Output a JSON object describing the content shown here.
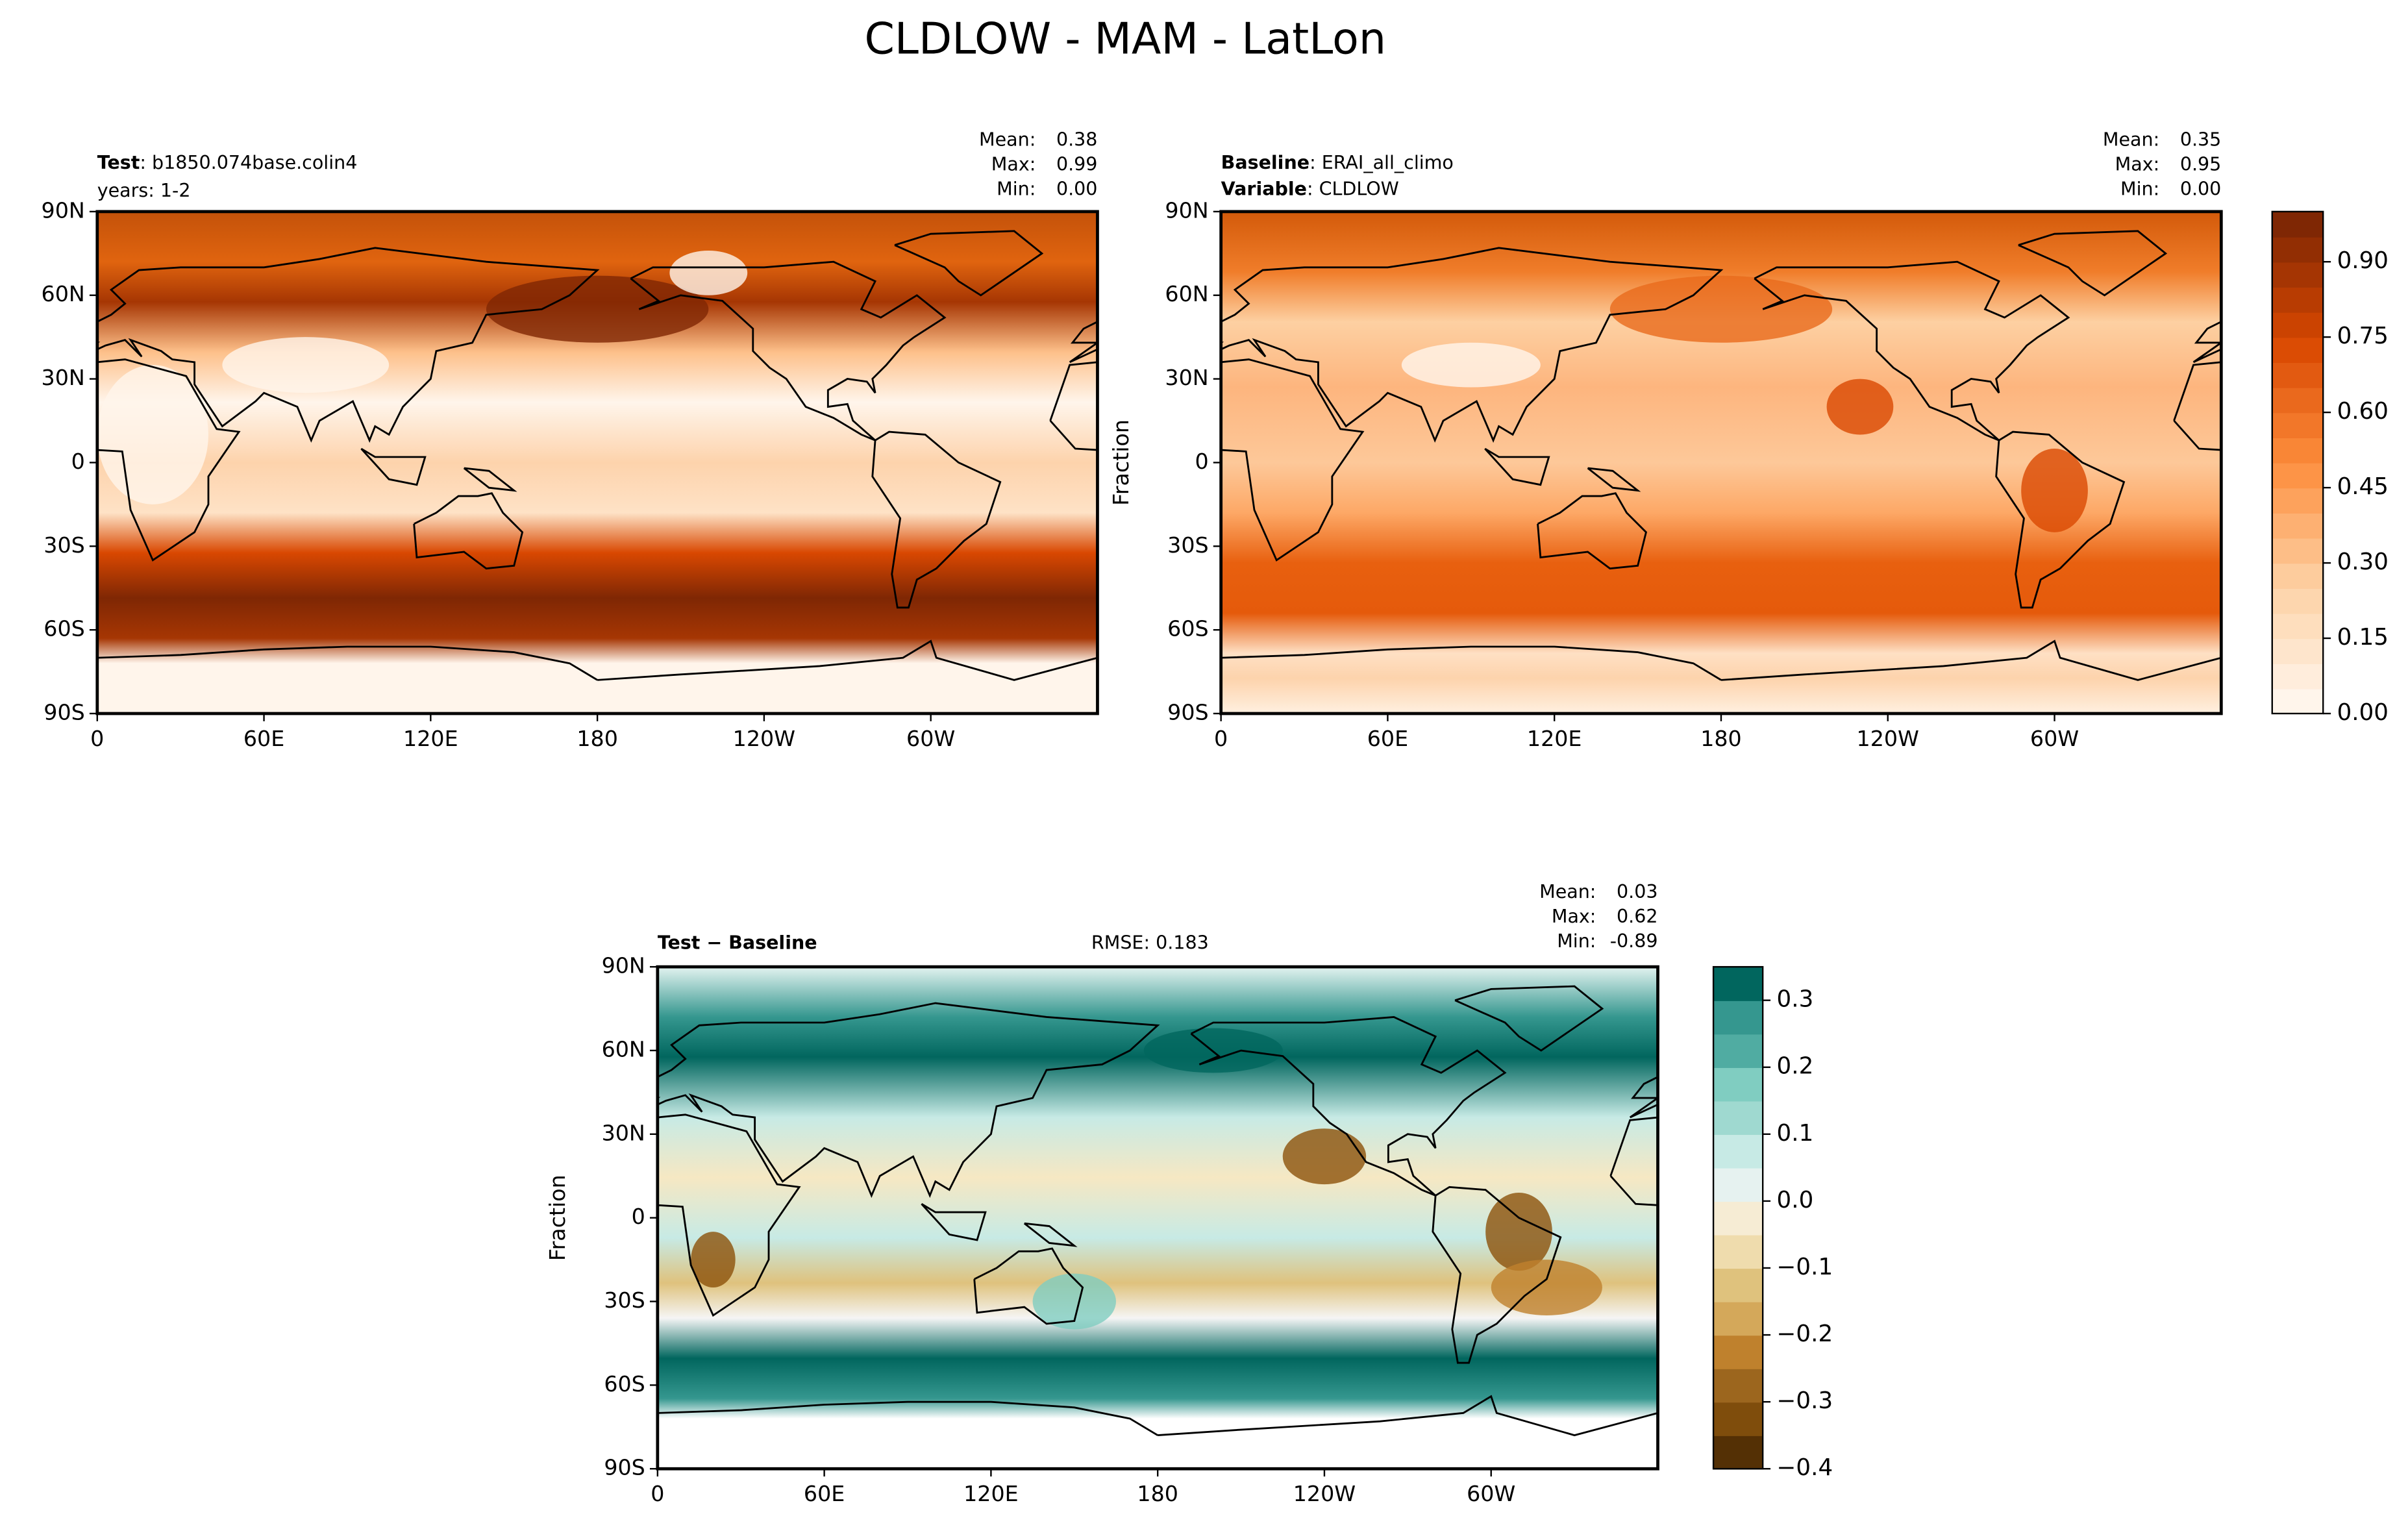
{
  "title": "CLDLOW - MAM - LatLon",
  "panels": [
    {
      "labels": [
        {
          "key": "Test",
          "value": ": b1850.074base.colin4"
        }
      ],
      "note": "years: 1-2",
      "stats": [
        {
          "name": "Mean:",
          "value": "0.38"
        },
        {
          "name": "Max:",
          "value": "0.99"
        },
        {
          "name": "Min:",
          "value": "0.00"
        }
      ]
    },
    {
      "labels": [
        {
          "key": "Baseline",
          "value": ": ERAI_all_climo"
        },
        {
          "key": "Variable",
          "value": ": CLDLOW"
        }
      ],
      "stats": [
        {
          "name": "Mean:",
          "value": "0.35"
        },
        {
          "name": "Max:",
          "value": "0.95"
        },
        {
          "name": "Min:",
          "value": "0.00"
        }
      ],
      "ylabel": "Fraction"
    },
    {
      "labels": [
        {
          "key": "Test − Baseline"
        }
      ],
      "rmse": "RMSE: 0.183",
      "stats": [
        {
          "name": "Mean:",
          "value": "0.03"
        },
        {
          "name": "Max:",
          "value": "0.62"
        },
        {
          "name": "Min:",
          "value": "-0.89"
        }
      ],
      "ylabel": "Fraction"
    }
  ],
  "lat_ticks": [
    "90N",
    "60N",
    "30N",
    "0",
    "30S",
    "60S",
    "90S"
  ],
  "lon_ticks": [
    "0",
    "60E",
    "120E",
    "180",
    "120W",
    "60W"
  ],
  "colorbars": [
    {
      "ticks": [
        "0.00",
        "0.15",
        "0.30",
        "0.45",
        "0.60",
        "0.75",
        "0.90"
      ]
    },
    {
      "ticks": [
        "−0.4",
        "−0.3",
        "−0.2",
        "−0.1",
        "0.0",
        "0.1",
        "0.2",
        "0.3"
      ]
    }
  ]
}
